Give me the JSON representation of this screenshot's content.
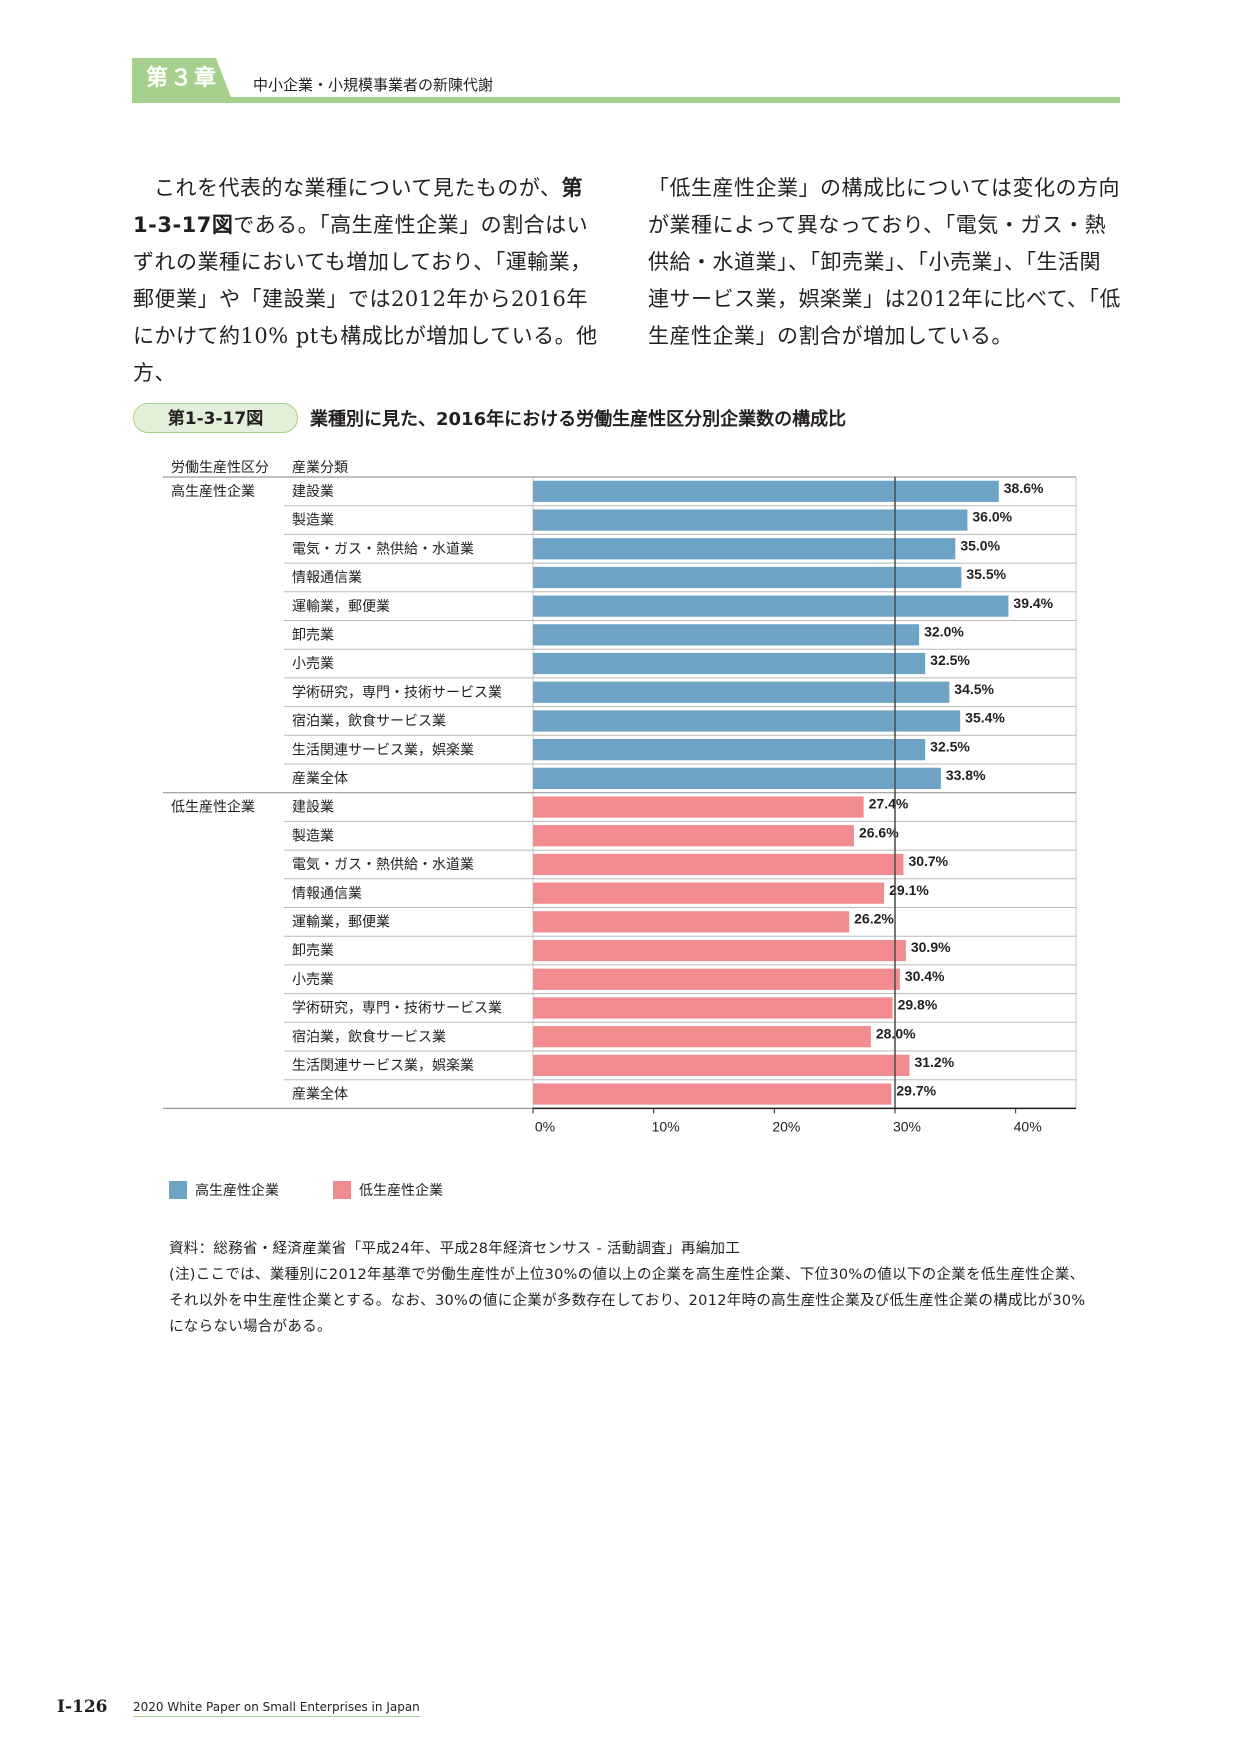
{
  "header": {
    "chapter": "第３章",
    "title": "中小企業・小規模事業者の新陳代謝"
  },
  "body": {
    "left": [
      {
        "text": "これを代表的な業種について見たものが、",
        "bold": false
      },
      {
        "text": "第1-3-17図",
        "bold": true
      },
      {
        "text": "である。「高生産性企業」の割合はいずれの業種においても増加しており、「運輸業，郵便業」や「建設業」では2012年から2016年にかけて約10% ptも構成比が増加している。他方、",
        "bold": false
      }
    ],
    "right": "「低生産性企業」の構成比については変化の方向が業種によって異なっており、「電気・ガス・熱供給・水道業」、「卸売業」、「小売業」、「生活関連サービス業，娯楽業」は2012年に比べて、「低生産性企業」の割合が増加している。"
  },
  "figure": {
    "number": "第1-3-17図",
    "title": "業種別に見た、2016年における労働生産性区分別企業数の構成比"
  },
  "chart_data": {
    "type": "bar",
    "orientation": "horizontal",
    "column_headers": [
      "労働生産性区分",
      "産業分類"
    ],
    "groups": [
      {
        "name": "高生産性企業",
        "color": "#6ea3c6",
        "categories": [
          "建設業",
          "製造業",
          "電気・ガス・熱供給・水道業",
          "情報通信業",
          "運輸業，郵便業",
          "卸売業",
          "小売業",
          "学術研究，専門・技術サービス業",
          "宿泊業，飲食サービス業",
          "生活関連サービス業，娯楽業",
          "産業全体"
        ],
        "values": [
          38.6,
          36.0,
          35.0,
          35.5,
          39.4,
          32.0,
          32.5,
          34.5,
          35.4,
          32.5,
          33.8
        ],
        "labels": [
          "38.6%",
          "36.0%",
          "35.0%",
          "35.5%",
          "39.4%",
          "32.0%",
          "32.5%",
          "34.5%",
          "35.4%",
          "32.5%",
          "33.8%"
        ]
      },
      {
        "name": "低生産性企業",
        "color": "#f28b8f",
        "categories": [
          "建設業",
          "製造業",
          "電気・ガス・熱供給・水道業",
          "情報通信業",
          "運輸業，郵便業",
          "卸売業",
          "小売業",
          "学術研究，専門・技術サービス業",
          "宿泊業，飲食サービス業",
          "生活関連サービス業，娯楽業",
          "産業全体"
        ],
        "values": [
          27.4,
          26.6,
          30.7,
          29.1,
          26.2,
          30.9,
          30.4,
          29.8,
          28.0,
          31.2,
          29.7
        ],
        "labels": [
          "27.4%",
          "26.6%",
          "30.7%",
          "29.1%",
          "26.2%",
          "30.9%",
          "30.4%",
          "29.8%",
          "28.0%",
          "31.2%",
          "29.7%"
        ]
      }
    ],
    "xlim": [
      0,
      45
    ],
    "xticks": [
      0,
      10,
      20,
      30,
      40
    ],
    "xtick_labels": [
      "0%",
      "10%",
      "20%",
      "30%",
      "40%"
    ],
    "reference_line": 30,
    "legend": [
      "高生産性企業",
      "低生産性企業"
    ],
    "legend_position": "bottom-left"
  },
  "source": {
    "line1": "資料：総務省・経済産業省「平成24年、平成28年経済センサス - 活動調査」再編加工",
    "note": "(注)ここでは、業種別に2012年基準で労働生産性が上位30%の値以上の企業を高生産性企業、下位30%の値以下の企業を低生産性企業、それ以外を中生産性企業とする。なお、30%の値に企業が多数存在しており、2012年時の高生産性企業及び低生産性企業の構成比が30%にならない場合がある。"
  },
  "footer": {
    "page": "I-126",
    "title": "2020 White Paper on Small Enterprises in Japan"
  }
}
